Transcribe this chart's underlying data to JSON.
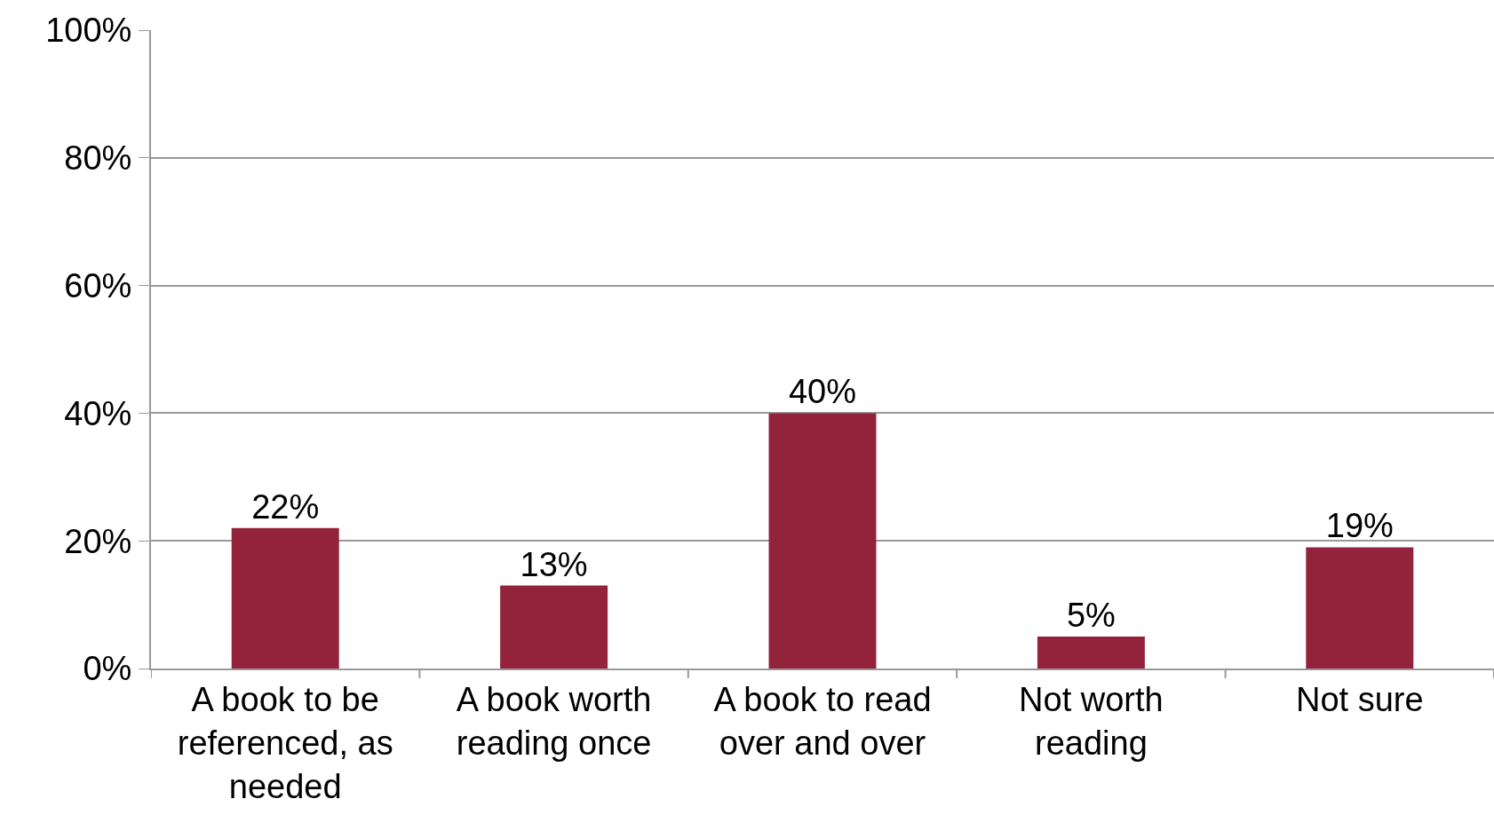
{
  "chart_data": {
    "type": "bar",
    "categories": [
      "A book to be referenced, as needed",
      "A book worth reading once",
      "A book to read over and over",
      "Not worth reading",
      "Not sure"
    ],
    "values": [
      22,
      13,
      40,
      5,
      19
    ],
    "color": "#92233a",
    "value_labels": [
      "22%",
      "13%",
      "40%",
      "5%",
      "19%"
    ],
    "ylim": [
      0,
      100
    ],
    "yticks": [
      {
        "value": 0,
        "label": "0%"
      },
      {
        "value": 20,
        "label": "20%"
      },
      {
        "value": 40,
        "label": "40%"
      },
      {
        "value": 60,
        "label": "60%"
      },
      {
        "value": 80,
        "label": "80%"
      },
      {
        "value": 100,
        "label": "100%"
      }
    ],
    "grid": "y",
    "legend": false
  }
}
